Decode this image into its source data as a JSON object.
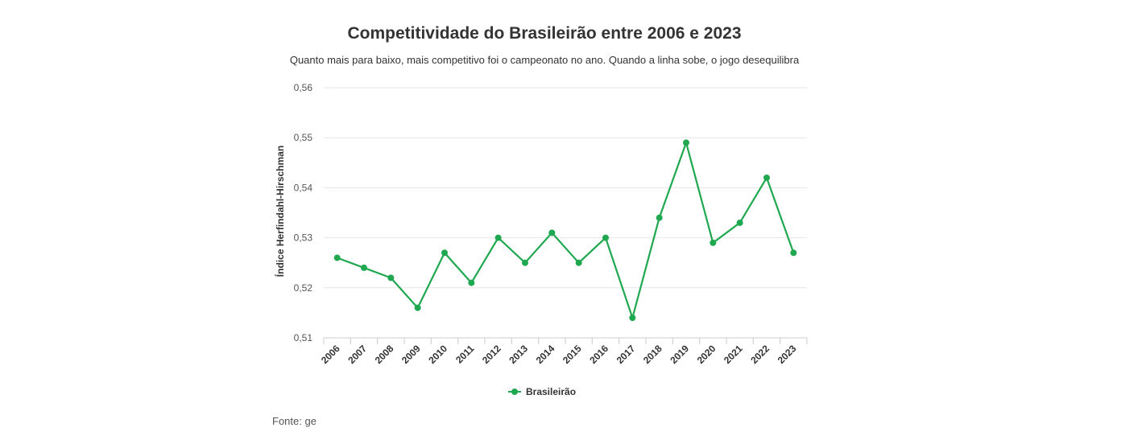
{
  "chart_data": {
    "type": "line",
    "title": "Competitividade do Brasileirão entre 2006 e 2023",
    "subtitle": "Quanto mais para baixo, mais competitivo foi o campeonato no ano. Quando a linha sobe, o jogo desequilibra",
    "ylabel": "Índice Herfindahl-Hirschman",
    "xlabel": "",
    "ylim": [
      0.51,
      0.56
    ],
    "yticks": [
      0.51,
      0.52,
      0.53,
      0.54,
      0.55,
      0.56
    ],
    "ytick_labels": [
      "0,51",
      "0,52",
      "0,53",
      "0,54",
      "0,55",
      "0,56"
    ],
    "categories": [
      "2006",
      "2007",
      "2008",
      "2009",
      "2010",
      "2011",
      "2012",
      "2013",
      "2014",
      "2015",
      "2016",
      "2017",
      "2018",
      "2019",
      "2020",
      "2021",
      "2022",
      "2023"
    ],
    "series": [
      {
        "name": "Brasileirão",
        "color": "#1fa84f",
        "values": [
          0.526,
          0.524,
          0.522,
          0.516,
          0.527,
          0.521,
          0.53,
          0.525,
          0.531,
          0.525,
          0.53,
          0.514,
          0.534,
          0.549,
          0.529,
          0.533,
          0.542,
          0.527
        ]
      }
    ],
    "grid": true,
    "legend": "bottom-center"
  },
  "source": "Fonte: ge"
}
